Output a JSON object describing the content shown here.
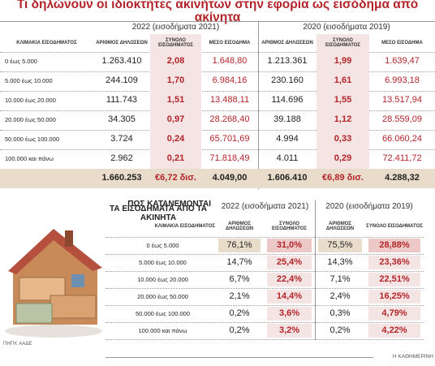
{
  "title": "Τι δηλώνουν οι ιδιοκτήτες ακινήτων στην εφορία ως εισόδημα από ακίνητα",
  "table1": {
    "groups": [
      "2022 (εισοδήματα 2021)",
      "2020 (εισοδήματα 2019)"
    ],
    "columns": [
      "ΚΛΙΜΑΚΙΑ ΕΙΣΟΔΗΜΑΤΟΣ",
      "ΑΡΙΘΜΟΣ ΔΗΛΩΣΕΩΝ",
      "ΣΥΝΟΛΟ ΕΙΣΟΔΗΜΑΤΟΣ",
      "ΜΕΣΟ ΕΙΣΟΔΗΜΑ",
      "ΑΡΙΘΜΟΣ ΔΗΛΩΣΕΩΝ",
      "ΣΥΝΟΛΟ ΕΙΣΟΔΗΜΑΤΟΣ",
      "ΜΕΣΟ ΕΙΣΟΔΗΜΑ"
    ],
    "rows": [
      [
        "0 έως 5.000",
        "1.263.410",
        "2,08",
        "1.648,80",
        "1.213.361",
        "1,99",
        "1.639,47"
      ],
      [
        "5.000 έως 10.000",
        "244.109",
        "1,70",
        "6.984,16",
        "230.160",
        "1,61",
        "6.993,18"
      ],
      [
        "10.000 έως 20.000",
        "111.743",
        "1,51",
        "13.488,11",
        "114.696",
        "1,55",
        "13.517,94"
      ],
      [
        "20.000 έως 50.000",
        "34.305",
        "0,97",
        "28.268,40",
        "39.188",
        "1,12",
        "28.559,09"
      ],
      [
        "50.000 έως 100.000",
        "3.724",
        "0,24",
        "65.701,69",
        "4.994",
        "0,33",
        "66.060,24"
      ],
      [
        "100.000 και πάνω",
        "2.962",
        "0,21",
        "71.818,49",
        "4.011",
        "0,29",
        "72.411,72"
      ]
    ],
    "totals": [
      "1.660.253",
      "€6,72 δισ.",
      "4.049,00",
      "1.606.410",
      "€6,89 δισ.",
      "4.288,32"
    ]
  },
  "table2": {
    "title": [
      "ΠΩΣ ΚΑΤΑΝΕΜΟΝΤΑΙ",
      "ΤΑ ΕΙΣΟΔΗΜΑΤΑ ΑΠΟ ΤΑ ΑΚΙΝΗΤΑ"
    ],
    "groups": [
      "2022 (εισοδήματα 2021)",
      "2020 (εισοδήματα 2019)"
    ],
    "columns": [
      "ΚΛΙΜΑΚΙΑ ΕΙΣΟΔΗΜΑΤΟΣ",
      "ΑΡΙΘΜΟΣ ΔΗΛΩΣΕΩΝ",
      "ΣΥΝΟΛΟ ΕΙΣΟΔΗΜΑΤΟΣ",
      "ΑΡΙΘΜΟΣ ΔΗΛΩΣΕΩΝ",
      "ΣΥΝΟΛΟ ΕΙΣΟΔΗΜΑΤΟΣ"
    ],
    "rows": [
      [
        "0 έως 5.000",
        "76,1%",
        "31,0%",
        "75,5%",
        "28,88%"
      ],
      [
        "5.000 έως 10.000",
        "14,7%",
        "25,4%",
        "14,3%",
        "23,36%"
      ],
      [
        "10.000 έως 20.000",
        "6,7%",
        "22,4%",
        "7,1%",
        "22,51%"
      ],
      [
        "20.000 έως 50.000",
        "2,1%",
        "14,4%",
        "2,4%",
        "16,25%"
      ],
      [
        "50.000 έως 100.000",
        "0,2%",
        "3,6%",
        "0,3%",
        "4,79%"
      ],
      [
        "100.000 και πάνω",
        "0,2%",
        "3,2%",
        "0,2%",
        "4,22%"
      ]
    ]
  },
  "footer": {
    "source": "ΠΗΓΗ: ΑΑΔΕ",
    "credit": "Η ΚΑΘΗΜΕΡΙΝΗ"
  }
}
